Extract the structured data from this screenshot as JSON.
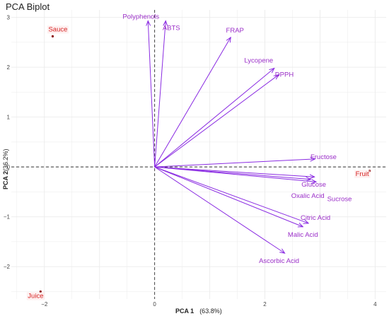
{
  "chart_data": {
    "type": "scatter",
    "title": "PCA Biplot",
    "xlabel": "PCA 1",
    "xlabel_pct": "(63.8%)",
    "ylabel": "PCA 2",
    "ylabel_pct": "(36.2%)",
    "xlim": [
      -2.6,
      4.2
    ],
    "ylim": [
      -2.65,
      3.15
    ],
    "xticks": [
      -2,
      0,
      2,
      4
    ],
    "yticks": [
      -2,
      -1,
      0,
      1,
      2,
      3
    ],
    "grid": true,
    "observations": [
      {
        "label": "Sauce",
        "x": -1.85,
        "y": 2.62
      },
      {
        "label": "Fruit",
        "x": 3.9,
        "y": -0.08
      },
      {
        "label": "Juice",
        "x": -2.07,
        "y": -2.5
      }
    ],
    "loadings": [
      {
        "label": "Polyphenols",
        "x": -0.12,
        "y": 2.93
      },
      {
        "label": "ABTS",
        "x": 0.2,
        "y": 2.93
      },
      {
        "label": "FRAP",
        "x": 1.38,
        "y": 2.6
      },
      {
        "label": "Lycopene",
        "x": 2.17,
        "y": 1.98
      },
      {
        "label": "DPPH",
        "x": 2.25,
        "y": 1.85
      },
      {
        "label": "Fructose",
        "x": 2.91,
        "y": 0.16
      },
      {
        "label": "Glucose",
        "x": 2.9,
        "y": -0.2
      },
      {
        "label": "Oxalic Acid",
        "x": 2.83,
        "y": -0.25
      },
      {
        "label": "Sucrose",
        "x": 2.93,
        "y": -0.3
      },
      {
        "label": "Citric Acid",
        "x": 2.79,
        "y": -1.13
      },
      {
        "label": "Malic Acid",
        "x": 2.69,
        "y": -1.2
      },
      {
        "label": "Ascorbic Acid",
        "x": 2.36,
        "y": -1.73
      }
    ],
    "colors": {
      "arrow": "#8a2be2",
      "var_text": "#9b30c8",
      "obs_point": "#8b0000",
      "obs_text": "#d62424",
      "grid": "#ebebeb",
      "zero_line": "#333333"
    }
  }
}
